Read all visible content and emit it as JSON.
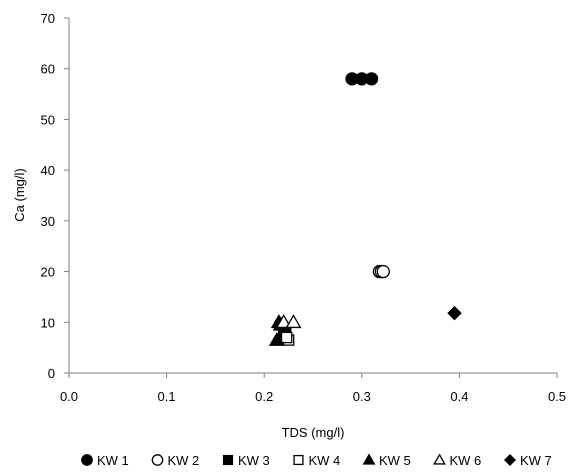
{
  "chart_data": {
    "type": "scatter",
    "title": "",
    "xlabel": "TDS (mg/l)",
    "ylabel": "Ca (mg/l)",
    "xlim": [
      0.0,
      0.5
    ],
    "ylim": [
      0,
      70
    ],
    "x_ticks": [
      "0.0",
      "0.1",
      "0.2",
      "0.3",
      "0.4",
      "0.5"
    ],
    "y_ticks": [
      "0",
      "10",
      "20",
      "30",
      "40",
      "50",
      "60",
      "70"
    ],
    "grid": false,
    "legend_position": "bottom",
    "series": [
      {
        "name": "KW 1",
        "marker": "circle-filled",
        "points": [
          [
            0.29,
            58
          ],
          [
            0.3,
            58
          ],
          [
            0.31,
            58
          ]
        ]
      },
      {
        "name": "KW 2",
        "marker": "circle-open",
        "points": [
          [
            0.318,
            20
          ],
          [
            0.32,
            20
          ],
          [
            0.322,
            20
          ]
        ]
      },
      {
        "name": "KW 3",
        "marker": "square-filled",
        "points": [
          [
            0.22,
            8
          ],
          [
            0.222,
            8.5
          ]
        ]
      },
      {
        "name": "KW 4",
        "marker": "square-open",
        "points": [
          [
            0.225,
            6.5
          ],
          [
            0.223,
            7
          ]
        ]
      },
      {
        "name": "KW 5",
        "marker": "triangle-filled",
        "points": [
          [
            0.215,
            10
          ],
          [
            0.217,
            9.5
          ],
          [
            0.213,
            6.5
          ]
        ]
      },
      {
        "name": "KW 6",
        "marker": "triangle-open",
        "points": [
          [
            0.22,
            10
          ],
          [
            0.23,
            10
          ]
        ]
      },
      {
        "name": "KW 7",
        "marker": "diamond-filled",
        "points": [
          [
            0.395,
            11.8
          ]
        ]
      }
    ]
  }
}
